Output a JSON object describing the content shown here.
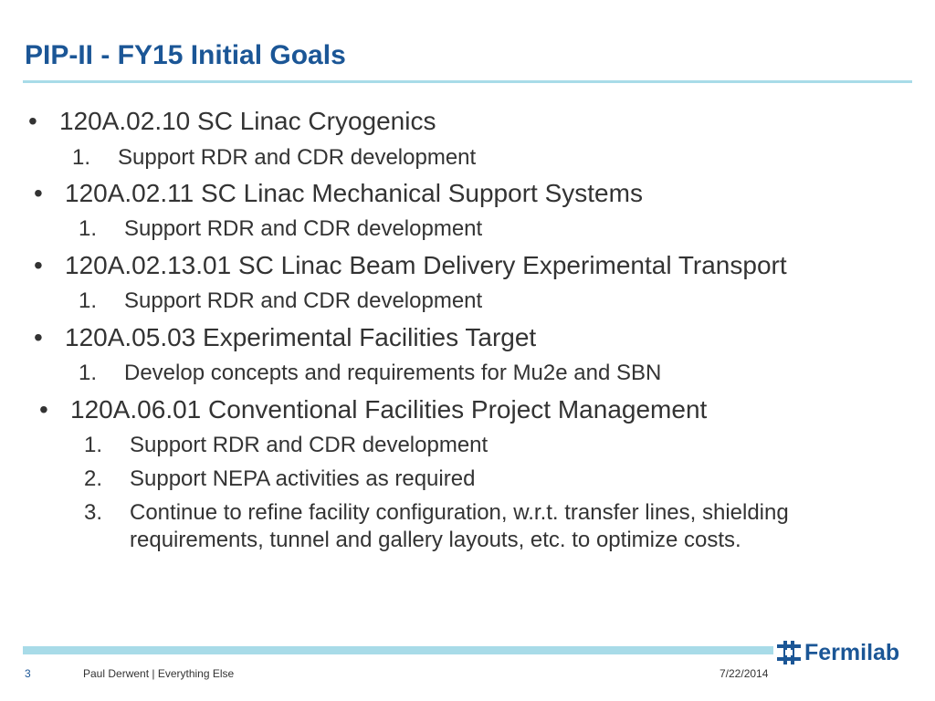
{
  "slide": {
    "title": "PIP-II - FY15 Initial Goals",
    "sections": [
      {
        "bullet": "•",
        "heading": "120A.02.10 SC Linac Cryogenics",
        "items": [
          {
            "num": "1.",
            "text": "Support RDR and CDR development"
          }
        ]
      },
      {
        "bullet": "•",
        "heading": "120A.02.11 SC Linac Mechanical Support Systems",
        "items": [
          {
            "num": "1.",
            "text": "Support RDR and CDR development"
          }
        ]
      },
      {
        "bullet": "•",
        "heading": "120A.02.13.01 SC Linac Beam Delivery Experimental Transport",
        "items": [
          {
            "num": "1.",
            "text": "Support RDR and CDR development"
          }
        ]
      },
      {
        "bullet": "•",
        "heading": "120A.05.03 Experimental Facilities Target",
        "items": [
          {
            "num": "1.",
            "text": "Develop concepts and requirements for Mu2e and SBN"
          }
        ]
      },
      {
        "bullet": "•",
        "heading": "120A.06.01 Conventional Facilities Project Management",
        "items": [
          {
            "num": "1.",
            "text": "Support RDR and CDR development"
          },
          {
            "num": "2.",
            "text": "Support NEPA activities as required"
          },
          {
            "num": "3.",
            "text": "Continue to refine facility configuration, w.r.t. transfer lines, shielding requirements, tunnel and gallery layouts, etc. to optimize costs."
          }
        ]
      }
    ]
  },
  "footer": {
    "page_number": "3",
    "author_line": "Paul Derwent | Everything Else",
    "date": "7/22/2014",
    "logo_text": "Fermilab"
  },
  "colors": {
    "title": "#1b5696",
    "rule": "#a8dbe8",
    "body_text": "#333333"
  }
}
